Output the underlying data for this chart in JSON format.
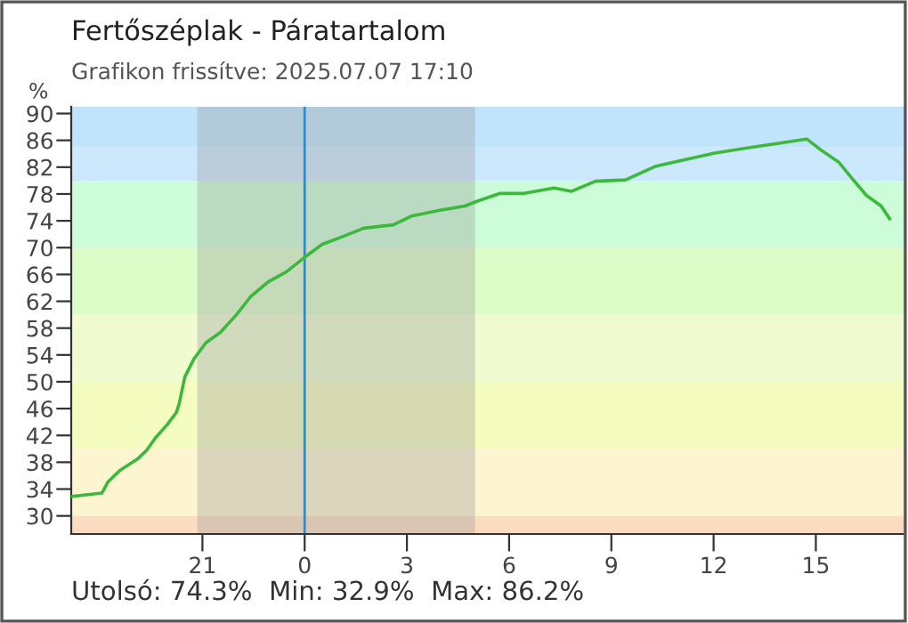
{
  "chart_data": {
    "type": "line",
    "title": "Fertőszéplak - Páratartalom",
    "subtitle": "Grafikon frissítve: 2025.07.07 17:10",
    "ylabel": "%",
    "annotations": [
      "Utolsó: 74.3%  Min: 32.9%  Max: 86.2%"
    ],
    "x": [
      "2025-07-06T17:10",
      "2025-07-06T17:42",
      "2025-07-06T18:03",
      "2025-07-06T18:14",
      "2025-07-06T18:35",
      "2025-07-06T19:06",
      "2025-07-06T19:22",
      "2025-07-06T19:37",
      "2025-07-06T19:58",
      "2025-07-06T20:14",
      "2025-07-06T20:19",
      "2025-07-06T20:29",
      "2025-07-06T20:45",
      "2025-07-06T21:06",
      "2025-07-06T21:32",
      "2025-07-06T21:59",
      "2025-07-06T22:25",
      "2025-07-06T22:56",
      "2025-07-06T23:28",
      "2025-07-06T23:59",
      "2025-07-07T00:31",
      "2025-07-07T01:12",
      "2025-07-07T01:44",
      "2025-07-07T02:36",
      "2025-07-07T03:08",
      "2025-07-07T04:00",
      "2025-07-07T04:42",
      "2025-07-07T05:03",
      "2025-07-07T05:44",
      "2025-07-07T06:26",
      "2025-07-07T07:19",
      "2025-07-07T07:50",
      "2025-07-07T08:32",
      "2025-07-07T09:25",
      "2025-07-07T10:17",
      "2025-07-07T11:09",
      "2025-07-07T12:02",
      "2025-07-07T12:54",
      "2025-07-07T13:57",
      "2025-07-07T14:44",
      "2025-07-07T15:10",
      "2025-07-07T15:41",
      "2025-07-07T16:02",
      "2025-07-07T16:29",
      "2025-07-07T16:55",
      "2025-07-07T17:10"
    ],
    "series": [
      {
        "color": "#3cb93c",
        "values": [
          32.9,
          33.2,
          33.4,
          35.1,
          36.8,
          38.5,
          39.8,
          41.6,
          43.6,
          45.4,
          46.7,
          50.7,
          53.4,
          55.8,
          57.4,
          59.9,
          62.7,
          64.9,
          66.4,
          68.5,
          70.5,
          71.8,
          72.9,
          73.4,
          74.7,
          75.6,
          76.2,
          76.9,
          78.1,
          78.1,
          78.9,
          78.4,
          79.9,
          80.1,
          82.1,
          83.1,
          84.1,
          84.8,
          85.6,
          86.2,
          84.5,
          82.7,
          80.5,
          77.8,
          76.2,
          74.3
        ]
      }
    ],
    "xlim": [
      "2025-07-06T17:09",
      "2025-07-07T17:36"
    ],
    "ylim": [
      27.3,
      91
    ],
    "xticks": [
      {
        "value": "2025-07-06T21:00",
        "label": "21"
      },
      {
        "value": "2025-07-07T00:00",
        "label": "0"
      },
      {
        "value": "2025-07-07T03:00",
        "label": "3"
      },
      {
        "value": "2025-07-07T06:00",
        "label": "6"
      },
      {
        "value": "2025-07-07T09:00",
        "label": "9"
      },
      {
        "value": "2025-07-07T12:00",
        "label": "12"
      },
      {
        "value": "2025-07-07T15:00",
        "label": "15"
      }
    ],
    "yticks": [
      30,
      34,
      38,
      42,
      46,
      50,
      54,
      58,
      62,
      66,
      70,
      74,
      78,
      82,
      86,
      90
    ],
    "bands": [
      {
        "axis": "y",
        "from": 27.3,
        "to": 30,
        "color": "#fcdcc0"
      },
      {
        "axis": "y",
        "from": 30,
        "to": 40,
        "color": "#fdf5cf"
      },
      {
        "axis": "y",
        "from": 40,
        "to": 50,
        "color": "#f4fcc0"
      },
      {
        "axis": "y",
        "from": 50,
        "to": 60,
        "color": "#f0fcd0"
      },
      {
        "axis": "y",
        "from": 60,
        "to": 70,
        "color": "#dcfcc8"
      },
      {
        "axis": "y",
        "from": 70,
        "to": 80,
        "color": "#ccfcd8"
      },
      {
        "axis": "y",
        "from": 80,
        "to": 85,
        "color": "#cce8fc"
      },
      {
        "axis": "y",
        "from": 85,
        "to": 91,
        "color": "#c0e4fc"
      },
      {
        "axis": "x",
        "from": "2025-07-06T20:51",
        "to": "2025-07-07T05:00",
        "color": "#9a9a9a"
      }
    ],
    "ref_lines": [
      {
        "axis": "x",
        "value": "2025-07-07T00:00",
        "color": "#1e90e0"
      }
    ],
    "grid": false,
    "legend": false,
    "marker": "none",
    "line_style": "solid"
  }
}
